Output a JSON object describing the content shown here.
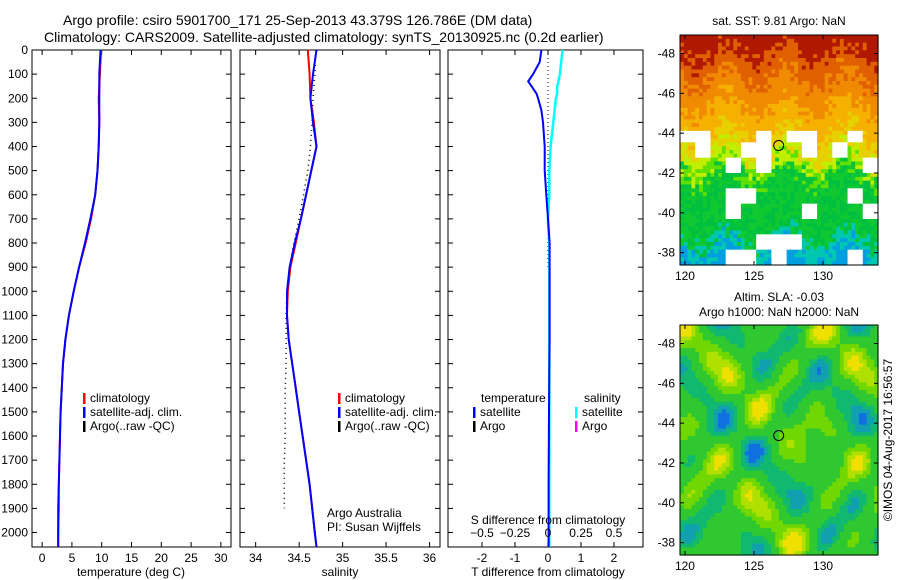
{
  "title_line1": "Argo profile: csiro 5901700_171 25-Sep-2013 43.379S 126.786E (DM data)",
  "title_line2": "Climatology: CARS2009. Satellite-adjusted climatology: synTS_20130925.nc (0.2d earlier)",
  "credit": "©IMOS 04-Aug-2017 16:56:57",
  "colors": {
    "climatology": "#ff0000",
    "satellite": "#0000ff",
    "argo": "#000000",
    "s_satellite": "#00ffff",
    "s_argo": "#ff00ff"
  },
  "chart_data": [
    {
      "type": "line",
      "xlabel": "temperature (deg C)",
      "ylabel": "",
      "xlim": [
        -1.7,
        31.7
      ],
      "ylim": [
        0,
        2060
      ],
      "xticks": [
        0,
        5,
        10,
        15,
        20,
        25,
        30
      ],
      "yticks": [
        0,
        100,
        200,
        300,
        400,
        500,
        600,
        700,
        800,
        900,
        1000,
        1100,
        1200,
        1300,
        1400,
        1500,
        1600,
        1700,
        1800,
        1900,
        2000
      ],
      "legend": [
        "climatology",
        "satellite-adj. clim.",
        "Argo(..raw -QC)"
      ],
      "depth": [
        0,
        100,
        200,
        300,
        400,
        500,
        600,
        700,
        800,
        900,
        1000,
        1100,
        1200,
        1300,
        1400,
        1500,
        1600,
        1700,
        1800,
        1900,
        2000,
        2060
      ],
      "series": [
        {
          "name": "climatology",
          "values": [
            9.9,
            9.7,
            9.5,
            9.6,
            9.5,
            9.3,
            8.9,
            8.2,
            7.3,
            6.2,
            5.3,
            4.5,
            3.9,
            3.5,
            3.3,
            3.1,
            3.0,
            2.9,
            2.8,
            2.8,
            2.7,
            2.7
          ]
        },
        {
          "name": "satellite-adj. clim.",
          "values": [
            9.8,
            9.6,
            9.6,
            9.6,
            9.5,
            9.3,
            8.9,
            8.1,
            7.2,
            6.2,
            5.3,
            4.5,
            3.9,
            3.5,
            3.3,
            3.1,
            3.0,
            2.9,
            2.8,
            2.7,
            2.7,
            2.7
          ]
        },
        {
          "name": "Argo",
          "values": [
            9.8,
            9.7,
            9.6,
            9.6,
            9.5,
            9.3,
            8.9,
            8.1,
            7.2,
            6.2,
            5.3,
            4.5,
            3.9,
            3.5,
            3.3,
            3.1,
            3.0,
            2.9,
            2.8,
            2.7,
            2.7,
            null
          ]
        }
      ]
    },
    {
      "type": "line",
      "xlabel": "salinity",
      "xlim": [
        33.82,
        36.12
      ],
      "ylim": [
        0,
        2060
      ],
      "xticks": [
        34,
        34.5,
        35,
        35.5,
        36
      ],
      "legend": [
        "climatology",
        "satellite-adj. clim.",
        "Argo(..raw -QC)"
      ],
      "annotation": [
        "Argo Australia",
        "PI: Susan Wijffels"
      ],
      "depth": [
        0,
        100,
        200,
        300,
        400,
        500,
        600,
        700,
        800,
        900,
        1000,
        1100,
        1200,
        1300,
        1400,
        1500,
        1600,
        1700,
        1800,
        1900,
        2000,
        2060
      ],
      "series": [
        {
          "name": "climatology",
          "values": [
            34.6,
            34.62,
            34.63,
            34.67,
            34.7,
            34.64,
            34.58,
            34.52,
            34.46,
            34.4,
            34.37,
            34.36,
            34.38,
            34.42,
            34.46,
            34.5,
            34.54,
            34.58,
            34.62,
            34.65,
            34.68,
            34.7
          ]
        },
        {
          "name": "satellite-adj. clim.",
          "values": [
            34.7,
            34.66,
            34.63,
            34.66,
            34.7,
            34.64,
            34.58,
            34.52,
            34.45,
            34.39,
            34.36,
            34.36,
            34.38,
            34.42,
            34.46,
            34.5,
            34.54,
            34.58,
            34.62,
            34.65,
            34.68,
            34.7
          ]
        },
        {
          "name": "Argo",
          "values": [
            34.69,
            34.68,
            34.66,
            34.65,
            34.63,
            34.6,
            34.55,
            34.5,
            34.44,
            34.39,
            34.36,
            34.35,
            34.35,
            34.35,
            34.34,
            34.34,
            34.34,
            34.33,
            34.33,
            34.33,
            null,
            null
          ]
        }
      ]
    },
    {
      "type": "line",
      "xlabel": "T difference from climatology",
      "xlabel2": "S difference from climatology",
      "xlim": [
        -3.03,
        2.88
      ],
      "ylim": [
        0,
        2060
      ],
      "xticks": [
        -2,
        -1,
        0,
        1,
        2
      ],
      "xticks2": [
        -0.5,
        -0.25,
        0,
        0.25,
        0.5
      ],
      "legend_t": "temperature",
      "legend_s": "salinity",
      "legend_items": [
        "satellite",
        "Argo",
        "satellite",
        "Argo"
      ],
      "depth": [
        0,
        50,
        100,
        130,
        150,
        180,
        200,
        250,
        300,
        400,
        500,
        600,
        700,
        800,
        1000,
        1200,
        1500,
        1800,
        2060
      ],
      "series": [
        {
          "name": "T satellite",
          "values": [
            -0.2,
            -0.25,
            -0.45,
            -0.6,
            -0.5,
            -0.35,
            -0.3,
            -0.2,
            -0.15,
            -0.1,
            -0.1,
            -0.05,
            0.0,
            0.05,
            0.05,
            0.05,
            0.03,
            0.02,
            0.02
          ]
        },
        {
          "name": "S satellite",
          "values": [
            0.11,
            0.1,
            0.09,
            0.08,
            0.07,
            0.07,
            0.06,
            0.05,
            0.04,
            0.02,
            0.01,
            0.01,
            0.0,
            0.01,
            0.01,
            0.01,
            0.01,
            0.01,
            0.01
          ]
        }
      ]
    },
    {
      "type": "heatmap",
      "title": "sat. SST: 9.81  Argo: NaN",
      "xlim": [
        119.64,
        133.98
      ],
      "ylim": [
        -48.93,
        -37.38
      ],
      "xticks": [
        120,
        125,
        130
      ],
      "yticks": [
        -38,
        -40,
        -42,
        -44,
        -46,
        -48
      ],
      "marker": [
        126.786,
        -43.379
      ]
    },
    {
      "type": "heatmap",
      "title": "Altim. SLA: -0.03",
      "subtitle": "Argo h1000: NaN h2000: NaN",
      "xlim": [
        119.64,
        133.98
      ],
      "ylim": [
        -48.93,
        -37.38
      ],
      "xticks": [
        120,
        125,
        130
      ],
      "yticks": [
        -38,
        -40,
        -42,
        -44,
        -46,
        -48
      ],
      "marker": [
        126.786,
        -43.379
      ]
    }
  ]
}
